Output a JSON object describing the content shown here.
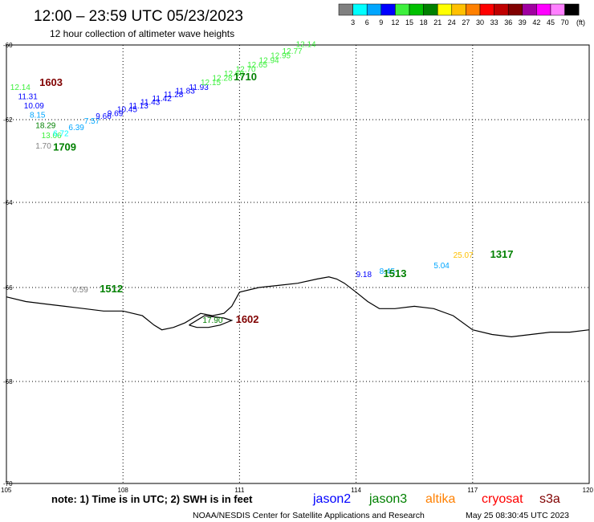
{
  "header": {
    "title": "12:00 – 23:59 UTC 05/23/2023",
    "subtitle": "12 hour collection of altimeter wave heights"
  },
  "colorbar": {
    "unit_label": "(ft)",
    "ticks": [
      "3",
      "6",
      "9",
      "12",
      "15",
      "18",
      "21",
      "24",
      "27",
      "30",
      "33",
      "36",
      "39",
      "42",
      "45",
      "70"
    ],
    "colors": [
      "#808080",
      "#00ffff",
      "#00a6ff",
      "#0000ff",
      "#3df03d",
      "#00c000",
      "#008000",
      "#ffff00",
      "#ffc000",
      "#ff8000",
      "#ff0000",
      "#c00000",
      "#800000",
      "#a000a0",
      "#ff00ff",
      "#ff80ff",
      "#000000"
    ]
  },
  "footer": {
    "note": "note: 1) Time is in UTC; 2) SWH is in feet",
    "satellites": [
      {
        "name": "jason2",
        "color": "#0000ff"
      },
      {
        "name": "jason3",
        "color": "#008000"
      },
      {
        "name": "altika",
        "color": "#ff8000"
      },
      {
        "name": "cryosat",
        "color": "#ff0000"
      },
      {
        "name": "s3a",
        "color": "#800000"
      }
    ],
    "credit": "NOAA/NESDIS Center for Satellite Applications and Research",
    "timestamp": "May 25 08:30:45 UTC 2023"
  },
  "chart_data": {
    "type": "scatter",
    "title": "12:00 – 23:59 UTC 05/23/2023",
    "subtitle": "12 hour collection of altimeter wave heights",
    "xlabel": "",
    "ylabel": "",
    "xlim": [
      105,
      120
    ],
    "ylim": [
      -70,
      -60
    ],
    "x_ticks": [
      "105",
      "108",
      "111",
      "114",
      "117",
      "120"
    ],
    "y_ticks": [
      "-60",
      "-62",
      "-64",
      "-66",
      "-68",
      "-70"
    ],
    "grid": true,
    "coastline": [
      [
        105,
        -66.2
      ],
      [
        105.5,
        -66.3
      ],
      [
        106,
        -66.35
      ],
      [
        106.5,
        -66.4
      ],
      [
        107,
        -66.45
      ],
      [
        107.5,
        -66.5
      ],
      [
        108,
        -66.5
      ],
      [
        108.5,
        -66.6
      ],
      [
        108.8,
        -66.8
      ],
      [
        109,
        -66.9
      ],
      [
        109.3,
        -66.85
      ],
      [
        109.6,
        -66.75
      ],
      [
        109.8,
        -66.65
      ],
      [
        110,
        -66.55
      ],
      [
        110.3,
        -66.6
      ],
      [
        110.6,
        -66.55
      ],
      [
        110.8,
        -66.4
      ],
      [
        111,
        -66.1
      ],
      [
        111.5,
        -66.0
      ],
      [
        112,
        -65.95
      ],
      [
        112.5,
        -65.9
      ],
      [
        113,
        -65.8
      ],
      [
        113.3,
        -65.75
      ],
      [
        113.5,
        -65.8
      ],
      [
        113.7,
        -65.9
      ],
      [
        114,
        -66.1
      ],
      [
        114.3,
        -66.3
      ],
      [
        114.6,
        -66.45
      ],
      [
        115,
        -66.45
      ],
      [
        115.5,
        -66.4
      ],
      [
        116,
        -66.45
      ],
      [
        116.5,
        -66.6
      ],
      [
        117,
        -66.9
      ],
      [
        117.5,
        -67.0
      ],
      [
        118,
        -67.05
      ],
      [
        118.5,
        -67.0
      ],
      [
        119,
        -66.95
      ],
      [
        119.5,
        -66.95
      ],
      [
        120,
        -66.9
      ]
    ],
    "coastline_island": [
      [
        109.7,
        -66.8
      ],
      [
        110.1,
        -66.6
      ],
      [
        110.6,
        -66.65
      ],
      [
        110.8,
        -66.7
      ],
      [
        110.5,
        -66.8
      ],
      [
        110.2,
        -66.85
      ],
      [
        109.9,
        -66.85
      ],
      [
        109.7,
        -66.8
      ]
    ],
    "series": [
      {
        "name": "1603",
        "label_color": "#800000",
        "label_x": 105.85,
        "label_y": -61.1,
        "points": [
          {
            "x": 105.1,
            "y": -61.2,
            "value": "12.14",
            "color": "#3df03d"
          },
          {
            "x": 105.3,
            "y": -61.45,
            "value": "11.31",
            "color": "#0000ff"
          },
          {
            "x": 105.45,
            "y": -61.7,
            "value": "10.09",
            "color": "#0000ff"
          },
          {
            "x": 105.6,
            "y": -61.95,
            "value": "8.15",
            "color": "#00a6ff"
          },
          {
            "x": 105.75,
            "y": -62.2,
            "value": "18.29",
            "color": "#008000"
          },
          {
            "x": 105.9,
            "y": -62.45,
            "value": "13.06",
            "color": "#3df03d"
          },
          {
            "x": 105.75,
            "y": -62.7,
            "value": "1.70",
            "color": "#808080"
          }
        ]
      },
      {
        "name": "1709",
        "label_color": "#008000",
        "label_x": 106.2,
        "label_y": -62.75,
        "points": [
          {
            "x": 106.2,
            "y": -62.4,
            "value": "6.72",
            "color": "#00ffff"
          },
          {
            "x": 106.6,
            "y": -62.25,
            "value": "6.39",
            "color": "#00a6ff"
          },
          {
            "x": 107.0,
            "y": -62.1,
            "value": "7.57",
            "color": "#00a6ff"
          },
          {
            "x": 107.3,
            "y": -61.98,
            "value": "9.66",
            "color": "#0000ff"
          }
        ]
      },
      {
        "name": "1710",
        "label_color": "#008000",
        "label_x": 110.85,
        "label_y": -60.95,
        "points": [
          {
            "x": 107.6,
            "y": -61.9,
            "value": "9.69",
            "color": "#0000ff"
          },
          {
            "x": 107.85,
            "y": -61.8,
            "value": "10.45",
            "color": "#0000ff"
          },
          {
            "x": 108.15,
            "y": -61.7,
            "value": "11.13",
            "color": "#0000ff"
          },
          {
            "x": 108.45,
            "y": -61.6,
            "value": "11.43",
            "color": "#0000ff"
          },
          {
            "x": 108.75,
            "y": -61.5,
            "value": "11.42",
            "color": "#0000ff"
          },
          {
            "x": 109.05,
            "y": -61.4,
            "value": "11.28",
            "color": "#0000ff"
          },
          {
            "x": 109.35,
            "y": -61.3,
            "value": "11.83",
            "color": "#0000ff"
          },
          {
            "x": 109.7,
            "y": -61.2,
            "value": "11.93",
            "color": "#0000ff"
          },
          {
            "x": 110.0,
            "y": -61.08,
            "value": "12.15",
            "color": "#3df03d"
          },
          {
            "x": 110.3,
            "y": -60.96,
            "value": "12.28",
            "color": "#3df03d"
          },
          {
            "x": 110.6,
            "y": -60.84,
            "value": "12.68",
            "color": "#3df03d"
          },
          {
            "x": 110.9,
            "y": -60.72,
            "value": "12.70",
            "color": "#3df03d"
          },
          {
            "x": 111.2,
            "y": -60.6,
            "value": "12.65",
            "color": "#3df03d"
          },
          {
            "x": 111.5,
            "y": -60.48,
            "value": "12.94",
            "color": "#3df03d"
          },
          {
            "x": 111.8,
            "y": -60.36,
            "value": "12.95",
            "color": "#3df03d"
          },
          {
            "x": 112.1,
            "y": -60.24,
            "value": "12.77",
            "color": "#3df03d"
          },
          {
            "x": 112.45,
            "y": -60.05,
            "value": "12.14",
            "color": "#3df03d"
          }
        ]
      },
      {
        "name": "1512",
        "label_color": "#008000",
        "label_x": 107.4,
        "label_y": -66.1,
        "points": [
          {
            "x": 106.7,
            "y": -66.1,
            "value": "0.59",
            "color": "#808080"
          }
        ]
      },
      {
        "name": "1602",
        "label_color": "#800000",
        "label_x": 110.9,
        "label_y": -66.75,
        "points": [
          {
            "x": 110.05,
            "y": -66.75,
            "value": "17.90",
            "color": "#008000"
          }
        ]
      },
      {
        "name": "1513",
        "label_color": "#008000",
        "label_x": 114.7,
        "label_y": -65.75,
        "points": [
          {
            "x": 114.0,
            "y": -65.75,
            "value": "9.18",
            "color": "#0000ff"
          },
          {
            "x": 114.6,
            "y": -65.68,
            "value": "8.45",
            "color": "#00a6ff"
          },
          {
            "x": 116.0,
            "y": -65.55,
            "value": "5.04",
            "color": "#00a6ff"
          }
        ]
      },
      {
        "name": "1317",
        "label_color": "#008000",
        "label_x": 117.45,
        "label_y": -65.3,
        "points": [
          {
            "x": 116.5,
            "y": -65.3,
            "value": "25.07",
            "color": "#ffc000"
          }
        ]
      }
    ]
  }
}
